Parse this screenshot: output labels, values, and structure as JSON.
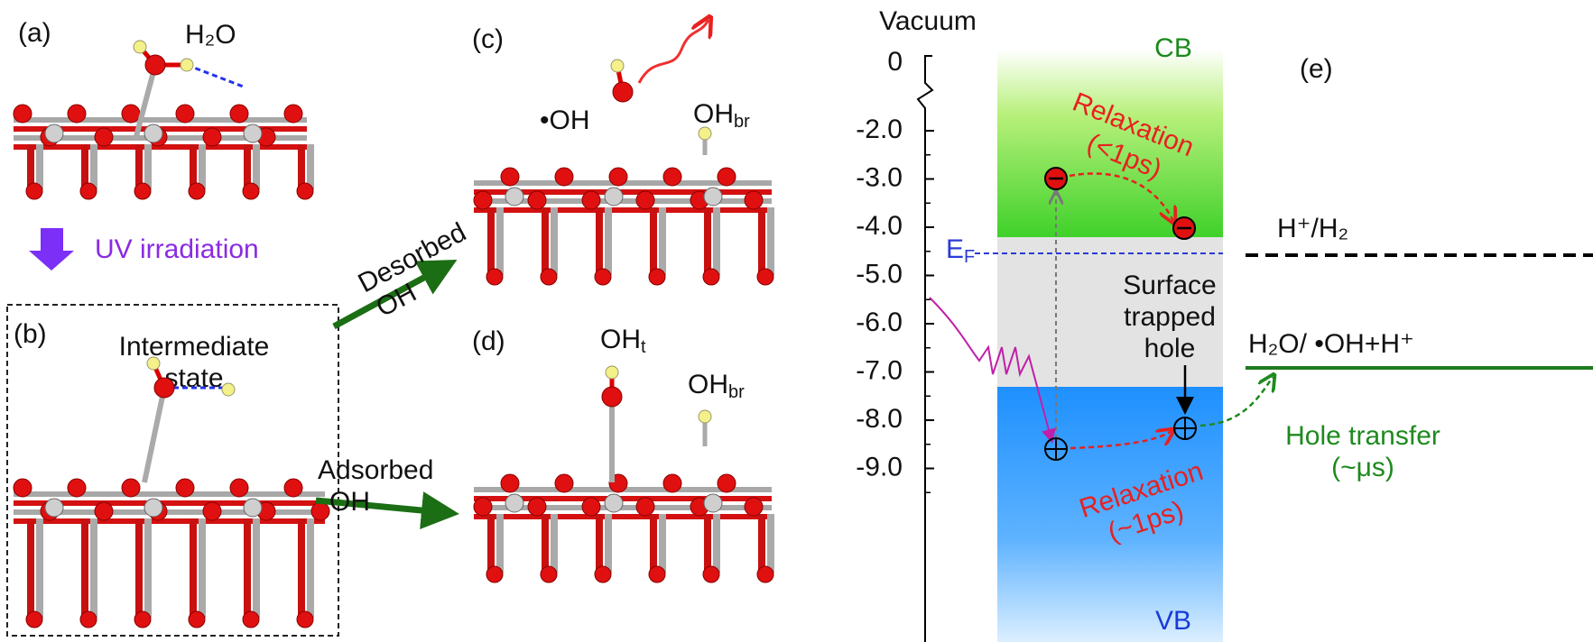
{
  "panel_a": {
    "label": "(a)",
    "molecule": "H₂O"
  },
  "uv": "UV irradiation",
  "panel_b": {
    "label": "(b)",
    "title_lines": [
      "Intermediate",
      "state"
    ]
  },
  "desorbed": [
    "Desorbed",
    "OH"
  ],
  "adsorbed": [
    "Adsorbed",
    "OH"
  ],
  "panel_c": {
    "label": "(c)",
    "radical": "•OH",
    "bridge": {
      "main": "OH",
      "sub": "br"
    }
  },
  "panel_d": {
    "label": "(d)",
    "terminal": {
      "main": "OH",
      "sub": "t"
    },
    "bridge": {
      "main": "OH",
      "sub": "br"
    }
  },
  "panel_e": {
    "label": "(e)",
    "axis_title": "Vacuum",
    "zero": "0",
    "yticks": [
      {
        "value": -2,
        "label": "-2.0"
      },
      {
        "value": -3,
        "label": "-3.0"
      },
      {
        "value": -4,
        "label": "-4.0"
      },
      {
        "value": -5,
        "label": "-5.0"
      },
      {
        "value": -6,
        "label": "-6.0"
      },
      {
        "value": -7,
        "label": "-7.0"
      },
      {
        "value": -8,
        "label": "-8.0"
      },
      {
        "value": -9,
        "label": "-9.0"
      }
    ],
    "cb": "CB",
    "vb": "VB",
    "fermi": {
      "main": "E",
      "sub": "F"
    },
    "relax_electron": [
      "Relaxation",
      "(<1ps)"
    ],
    "relax_hole": [
      "Relaxation",
      "(~1ps)"
    ],
    "surface_hole": [
      "Surface",
      "trapped",
      "hole"
    ],
    "h2_level": "H⁺/H₂",
    "oh_level": "H₂O/ •OH+H⁺",
    "hole_transfer": [
      "Hole transfer",
      "(~μs)"
    ]
  }
}
